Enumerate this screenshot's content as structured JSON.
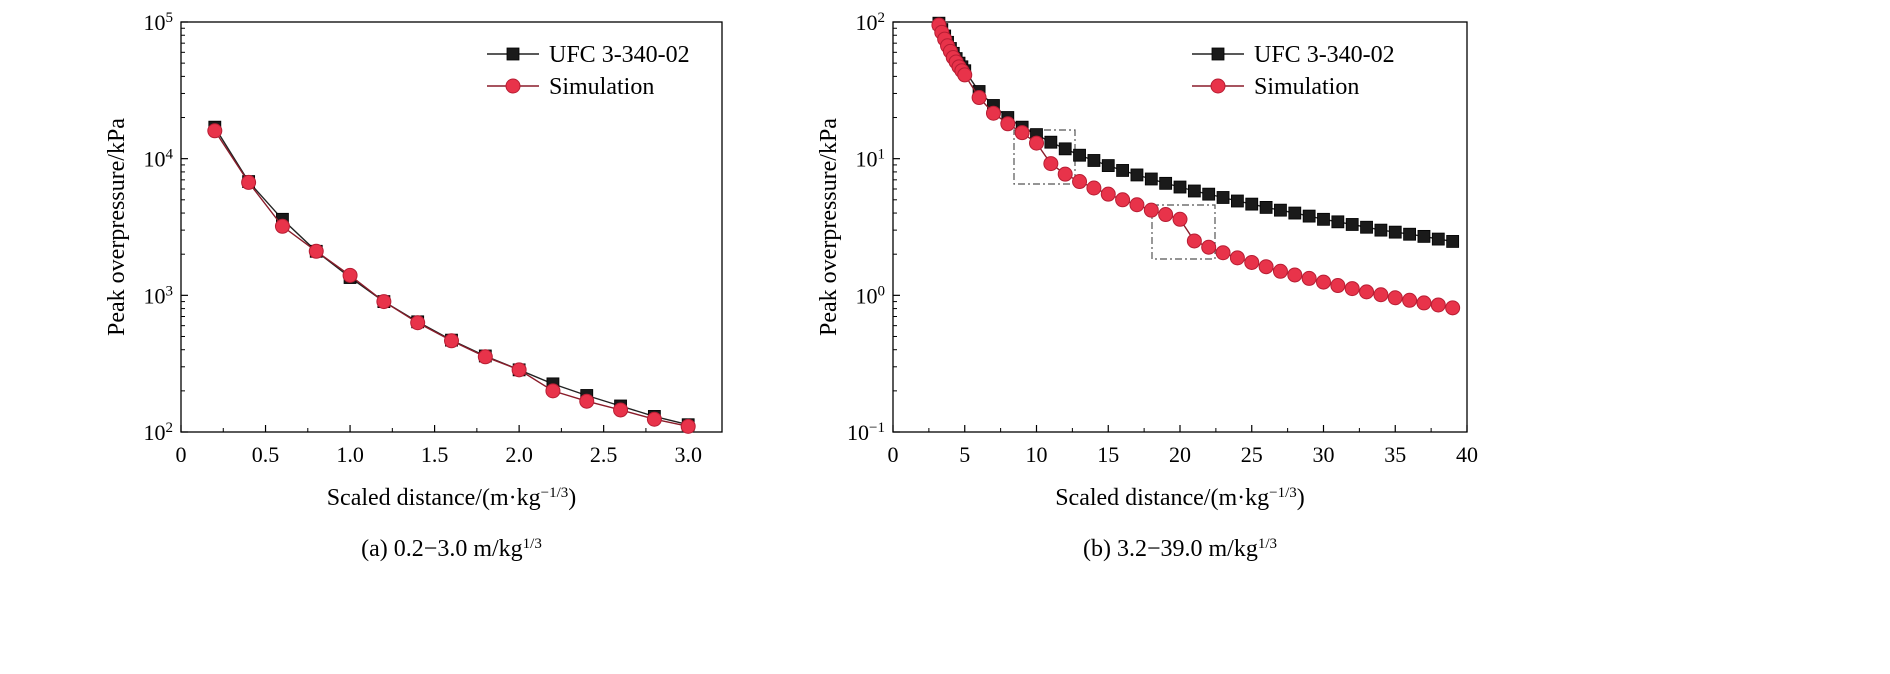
{
  "chart_data": [
    {
      "type": "line",
      "caption": "(a) 0.2−3.0 m/kg",
      "caption_sup": "1/3",
      "xlabel": "Scaled distance/(m·kg",
      "xlabel_sup": "−1/3",
      "xlabel_end": ")",
      "ylabel": "Peak overpressure/kPa",
      "xlim": [
        0,
        3.2
      ],
      "ylim": [
        100,
        100000
      ],
      "yscale": "log",
      "xticks": [
        0,
        0.5,
        1.0,
        1.5,
        2.0,
        2.5,
        3.0
      ],
      "xtick_labels": [
        "0",
        "0.5",
        "1.0",
        "1.5",
        "2.0",
        "2.5",
        "3.0"
      ],
      "yticks": [
        100,
        1000,
        10000,
        100000
      ],
      "ytick_base": "10",
      "ytick_exps": [
        "2",
        "3",
        "4",
        "5"
      ],
      "legend": "top-right",
      "x": [
        0.2,
        0.4,
        0.6,
        0.8,
        1.0,
        1.2,
        1.4,
        1.6,
        1.8,
        2.0,
        2.2,
        2.4,
        2.6,
        2.8,
        3.0
      ],
      "series": [
        {
          "name": "UFC 3-340-02",
          "marker": "square",
          "color": "#1a1a1a",
          "values": [
            17000,
            6800,
            3600,
            2100,
            1350,
            900,
            640,
            470,
            360,
            285,
            225,
            185,
            155,
            130,
            113
          ]
        },
        {
          "name": "Simulation",
          "marker": "circle",
          "color": "#e8334a",
          "values": [
            16000,
            6700,
            3200,
            2100,
            1400,
            900,
            630,
            465,
            355,
            285,
            200,
            168,
            145,
            124,
            110
          ]
        }
      ]
    },
    {
      "type": "line",
      "caption": "(b) 3.2−39.0 m/kg",
      "caption_sup": "1/3",
      "xlabel": "Scaled distance/(m·kg",
      "xlabel_sup": "−1/3",
      "xlabel_end": ")",
      "ylabel": "Peak overpressure/kPa",
      "xlim": [
        0,
        40
      ],
      "ylim": [
        0.1,
        100
      ],
      "yscale": "log",
      "xticks": [
        0,
        5,
        10,
        15,
        20,
        25,
        30,
        35,
        40
      ],
      "xtick_labels": [
        "0",
        "5",
        "10",
        "15",
        "20",
        "25",
        "30",
        "35",
        "40"
      ],
      "yticks": [
        0.1,
        1,
        10,
        100
      ],
      "ytick_base": "10",
      "ytick_exps": [
        "−1",
        "0",
        "1",
        "2"
      ],
      "legend": "top-right",
      "x": [
        3.2,
        3.4,
        3.6,
        3.8,
        4.0,
        4.2,
        4.4,
        4.6,
        4.8,
        5.0,
        6,
        7,
        8,
        9,
        10,
        11,
        12,
        13,
        14,
        15,
        16,
        17,
        18,
        19,
        20,
        21,
        22,
        23,
        24,
        25,
        26,
        27,
        28,
        29,
        30,
        31,
        32,
        33,
        34,
        35,
        36,
        37,
        38,
        39
      ],
      "series": [
        {
          "name": "UFC 3-340-02",
          "marker": "square",
          "color": "#1a1a1a",
          "values": [
            98,
            88,
            79,
            71,
            64,
            59,
            54,
            50,
            47,
            44,
            31,
            24.5,
            20,
            17,
            15,
            13.2,
            11.8,
            10.6,
            9.7,
            8.9,
            8.2,
            7.6,
            7.1,
            6.6,
            6.2,
            5.8,
            5.5,
            5.2,
            4.9,
            4.65,
            4.4,
            4.2,
            4.0,
            3.8,
            3.6,
            3.45,
            3.3,
            3.15,
            3.0,
            2.9,
            2.8,
            2.7,
            2.58,
            2.48
          ]
        },
        {
          "name": "Simulation",
          "marker": "circle",
          "color": "#e8334a",
          "values": [
            95,
            84,
            75,
            67,
            61,
            55,
            51,
            47,
            44,
            41,
            28,
            21.5,
            18,
            15.5,
            13,
            9.2,
            7.7,
            6.8,
            6.1,
            5.5,
            5.0,
            4.6,
            4.2,
            3.9,
            3.6,
            2.5,
            2.25,
            2.05,
            1.88,
            1.74,
            1.62,
            1.5,
            1.41,
            1.33,
            1.25,
            1.18,
            1.12,
            1.06,
            1.01,
            0.96,
            0.92,
            0.88,
            0.85,
            0.81
          ]
        }
      ]
    }
  ]
}
